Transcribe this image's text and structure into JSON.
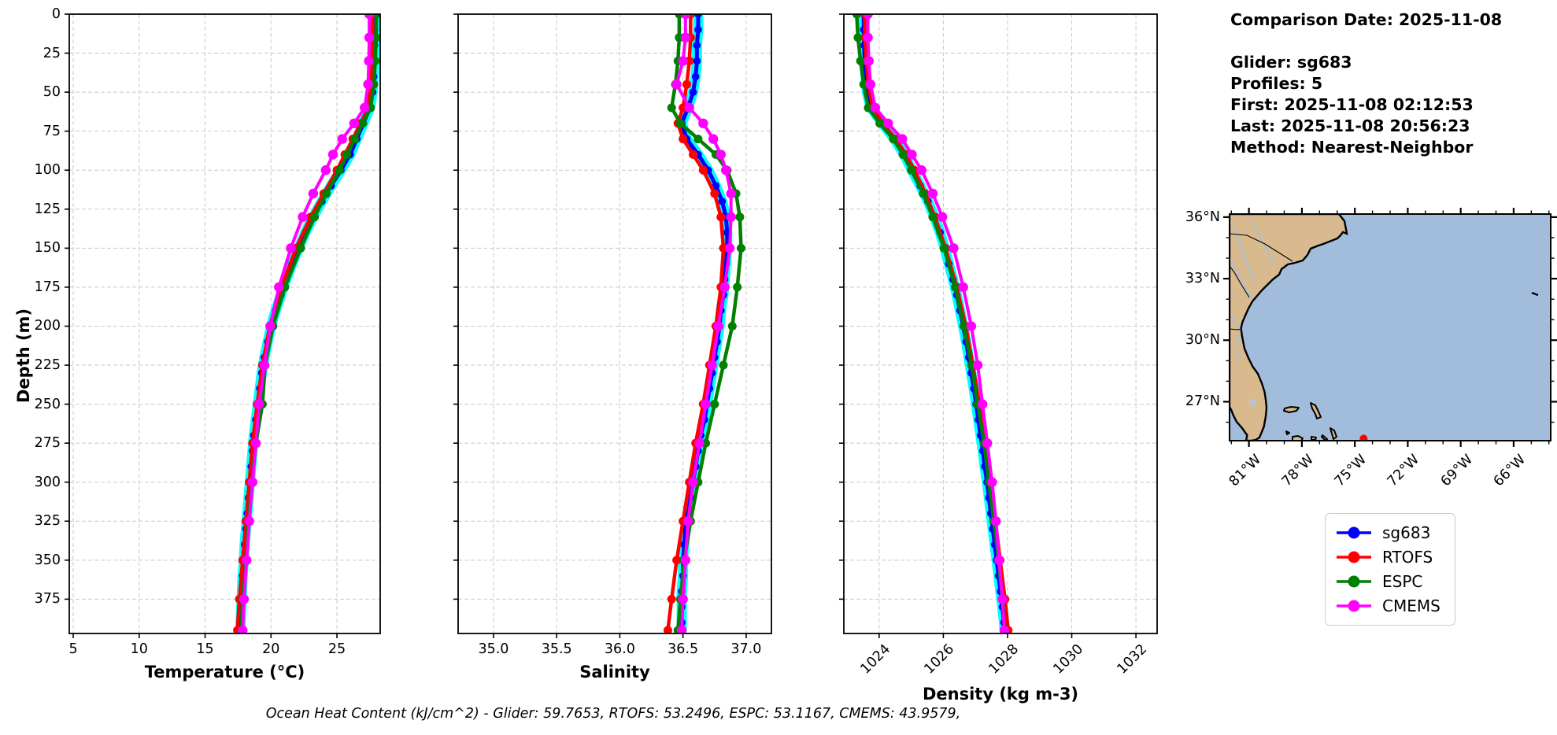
{
  "info_panel": {
    "comparison_date": "Comparison Date: 2025-11-08",
    "glider": "Glider: sg683",
    "profiles": "Profiles: 5",
    "first": "First: 2025-11-08 02:12:53",
    "last": "Last: 2025-11-08 20:56:23",
    "method": "Method: Nearest-Neighbor"
  },
  "ohc_text": "Ocean Heat Content (kJ/cm^2) - Glider: 59.7653,  RTOFS: 53.2496,  ESPC: 53.1167,  CMEMS: 43.9579,",
  "depth_axis": {
    "label": "Depth (m)",
    "ylim": [
      0,
      397
    ],
    "yticks": [
      0,
      25,
      50,
      75,
      100,
      125,
      150,
      175,
      200,
      225,
      250,
      275,
      300,
      325,
      350,
      375
    ],
    "ytick_labels": [
      "0",
      "25",
      "50",
      "75",
      "100",
      "125",
      "150",
      "175",
      "200",
      "225",
      "250",
      "275",
      "300",
      "325",
      "350",
      "375"
    ]
  },
  "legend": {
    "items": [
      {
        "label": "sg683",
        "color": "#0000ff"
      },
      {
        "label": "RTOFS",
        "color": "#ff0000"
      },
      {
        "label": "ESPC",
        "color": "#008000"
      },
      {
        "label": "CMEMS",
        "color": "#ff00ff"
      }
    ]
  },
  "colors": {
    "glider": "#0000ff",
    "glider_envelope": "#00ffff",
    "rtofs": "#ff0000",
    "espc": "#008000",
    "cmems": "#ff00ff",
    "grid": "#c9c9c9",
    "spine": "#000000"
  },
  "chart_data": [
    {
      "type": "line",
      "xlabel": "Temperature (°C)",
      "xlim": [
        4.7,
        28.28
      ],
      "xticks": [
        5,
        10,
        15,
        20,
        25
      ],
      "xtick_labels": [
        "5",
        "10",
        "15",
        "20",
        "25"
      ],
      "rotated_xticks": false,
      "grid": true,
      "series": [
        {
          "name": "sg683",
          "color": "#0000ff",
          "envelope": true,
          "marker_r": 4.8,
          "line_w": 5,
          "depths": [
            0,
            10,
            20,
            30,
            40,
            50,
            60,
            70,
            80,
            90,
            100,
            110,
            120,
            130,
            140,
            150,
            160,
            170,
            180,
            190,
            200,
            210,
            220,
            230,
            240,
            250,
            260,
            270,
            280,
            290,
            300,
            310,
            320,
            330,
            340,
            350,
            360,
            370,
            380,
            390,
            395
          ],
          "values": [
            27.85,
            27.85,
            27.84,
            27.82,
            27.78,
            27.7,
            27.5,
            27.0,
            26.5,
            26.0,
            25.3,
            24.55,
            23.85,
            23.2,
            22.6,
            22.1,
            21.6,
            21.15,
            20.75,
            20.35,
            20.0,
            19.75,
            19.5,
            19.3,
            19.15,
            19.0,
            18.85,
            18.7,
            18.6,
            18.5,
            18.4,
            18.3,
            18.2,
            18.1,
            18.0,
            17.95,
            17.85,
            17.8,
            17.75,
            17.7,
            17.68
          ]
        },
        {
          "name": "RTOFS",
          "color": "#ff0000",
          "envelope": false,
          "marker_r": 5.5,
          "line_w": 4.5,
          "depths": [
            0,
            15,
            30,
            45,
            60,
            70,
            80,
            90,
            100,
            115,
            130,
            150,
            175,
            200,
            225,
            250,
            275,
            300,
            325,
            350,
            375,
            395
          ],
          "values": [
            27.7,
            27.7,
            27.66,
            27.58,
            27.35,
            26.8,
            26.2,
            25.6,
            25.0,
            24.0,
            23.0,
            21.9,
            20.8,
            19.9,
            19.35,
            18.95,
            18.6,
            18.35,
            18.1,
            17.85,
            17.6,
            17.45
          ]
        },
        {
          "name": "ESPC",
          "color": "#008000",
          "envelope": false,
          "marker_r": 5.5,
          "line_w": 4.5,
          "depths": [
            0,
            15,
            30,
            45,
            60,
            70,
            80,
            90,
            100,
            115,
            130,
            150,
            175,
            200,
            225,
            250,
            275,
            300,
            325,
            350,
            375,
            395
          ],
          "values": [
            28.0,
            27.97,
            27.9,
            27.8,
            27.55,
            26.95,
            26.35,
            25.75,
            25.2,
            24.2,
            23.3,
            22.25,
            21.05,
            20.15,
            19.55,
            19.35,
            18.85,
            18.55,
            18.3,
            18.1,
            17.85,
            17.75
          ]
        },
        {
          "name": "CMEMS",
          "color": "#ff00ff",
          "envelope": false,
          "marker_r": 6.2,
          "line_w": 4,
          "depths": [
            0,
            15,
            30,
            45,
            60,
            70,
            80,
            90,
            100,
            115,
            130,
            150,
            175,
            200,
            225,
            250,
            275,
            300,
            325,
            350,
            375,
            395
          ],
          "values": [
            27.45,
            27.45,
            27.42,
            27.36,
            27.1,
            26.3,
            25.4,
            24.7,
            24.15,
            23.2,
            22.4,
            21.5,
            20.6,
            19.95,
            19.5,
            19.1,
            18.85,
            18.6,
            18.35,
            18.15,
            17.95,
            17.85
          ]
        }
      ]
    },
    {
      "type": "line",
      "xlabel": "Salinity",
      "xlim": [
        34.72,
        37.2
      ],
      "xticks": [
        35.0,
        35.5,
        36.0,
        36.5,
        37.0
      ],
      "xtick_labels": [
        "35.0",
        "35.5",
        "36.0",
        "36.5",
        "37.0"
      ],
      "rotated_xticks": false,
      "grid": true,
      "series": [
        {
          "name": "sg683",
          "color": "#0000ff",
          "envelope": true,
          "marker_r": 4.8,
          "line_w": 5,
          "depths": [
            0,
            10,
            20,
            30,
            40,
            50,
            60,
            70,
            80,
            90,
            100,
            110,
            120,
            130,
            140,
            150,
            160,
            170,
            180,
            190,
            200,
            210,
            220,
            230,
            240,
            250,
            260,
            270,
            280,
            290,
            300,
            310,
            320,
            330,
            340,
            350,
            360,
            370,
            380,
            390,
            395
          ],
          "values": [
            36.62,
            36.62,
            36.61,
            36.61,
            36.6,
            36.58,
            36.54,
            36.49,
            36.53,
            36.62,
            36.7,
            36.76,
            36.81,
            36.84,
            36.85,
            36.85,
            36.84,
            36.83,
            36.82,
            36.8,
            36.79,
            36.77,
            36.75,
            36.73,
            36.71,
            36.69,
            36.67,
            36.64,
            36.62,
            36.6,
            36.58,
            36.56,
            36.54,
            36.52,
            36.51,
            36.5,
            36.5,
            36.49,
            36.49,
            36.49,
            36.49
          ]
        },
        {
          "name": "RTOFS",
          "color": "#ff0000",
          "envelope": false,
          "marker_r": 5.5,
          "line_w": 4.5,
          "depths": [
            0,
            15,
            30,
            45,
            60,
            70,
            80,
            90,
            100,
            115,
            130,
            150,
            175,
            200,
            225,
            250,
            275,
            300,
            325,
            350,
            375,
            395
          ],
          "values": [
            36.56,
            36.56,
            36.55,
            36.53,
            36.5,
            36.46,
            36.5,
            36.58,
            36.66,
            36.75,
            36.8,
            36.82,
            36.8,
            36.76,
            36.71,
            36.66,
            36.6,
            36.55,
            36.5,
            36.45,
            36.41,
            36.38
          ]
        },
        {
          "name": "ESPC",
          "color": "#008000",
          "envelope": false,
          "marker_r": 5.5,
          "line_w": 4.5,
          "depths": [
            0,
            15,
            30,
            45,
            60,
            70,
            80,
            90,
            100,
            115,
            130,
            150,
            175,
            200,
            225,
            250,
            275,
            300,
            325,
            350,
            375,
            395
          ],
          "values": [
            36.47,
            36.47,
            36.46,
            36.44,
            36.41,
            36.48,
            36.62,
            36.76,
            36.85,
            36.92,
            36.95,
            36.96,
            36.93,
            36.89,
            36.82,
            36.75,
            36.68,
            36.62,
            36.56,
            36.51,
            36.48,
            36.46
          ]
        },
        {
          "name": "CMEMS",
          "color": "#ff00ff",
          "envelope": false,
          "marker_r": 6.2,
          "line_w": 4,
          "depths": [
            0,
            15,
            30,
            45,
            60,
            70,
            80,
            90,
            100,
            115,
            130,
            150,
            175,
            200,
            225,
            250,
            275,
            300,
            325,
            350,
            375,
            395
          ],
          "values": [
            36.52,
            36.52,
            36.5,
            36.45,
            36.55,
            36.66,
            36.74,
            36.8,
            36.84,
            36.88,
            36.88,
            36.87,
            36.83,
            36.78,
            36.73,
            36.68,
            36.63,
            36.58,
            36.54,
            36.52,
            36.5,
            36.49
          ]
        }
      ]
    },
    {
      "type": "line",
      "xlabel": "Density (kg m-3)",
      "xlim": [
        1022.9,
        1032.66
      ],
      "xticks": [
        1024,
        1026,
        1028,
        1030,
        1032
      ],
      "xtick_labels": [
        "1024",
        "1026",
        "1028",
        "1030",
        "1032"
      ],
      "rotated_xticks": true,
      "grid": true,
      "series": [
        {
          "name": "sg683",
          "color": "#0000ff",
          "envelope": true,
          "marker_r": 4.8,
          "line_w": 5,
          "depths": [
            0,
            10,
            20,
            30,
            40,
            50,
            60,
            70,
            80,
            90,
            100,
            110,
            120,
            130,
            140,
            150,
            160,
            170,
            180,
            190,
            200,
            210,
            220,
            230,
            240,
            250,
            260,
            270,
            280,
            290,
            300,
            310,
            320,
            330,
            340,
            350,
            360,
            370,
            380,
            390,
            395
          ],
          "values": [
            1023.52,
            1023.52,
            1023.53,
            1023.55,
            1023.58,
            1023.62,
            1023.74,
            1024.1,
            1024.48,
            1024.78,
            1025.02,
            1025.28,
            1025.52,
            1025.72,
            1025.9,
            1026.04,
            1026.17,
            1026.3,
            1026.42,
            1026.52,
            1026.62,
            1026.71,
            1026.79,
            1026.87,
            1026.95,
            1027.02,
            1027.09,
            1027.16,
            1027.23,
            1027.29,
            1027.36,
            1027.42,
            1027.48,
            1027.54,
            1027.6,
            1027.66,
            1027.72,
            1027.78,
            1027.84,
            1027.89,
            1027.91
          ]
        },
        {
          "name": "RTOFS",
          "color": "#ff0000",
          "envelope": false,
          "marker_r": 5.5,
          "line_w": 4.5,
          "depths": [
            0,
            15,
            30,
            45,
            60,
            70,
            80,
            90,
            100,
            115,
            130,
            150,
            175,
            200,
            225,
            250,
            275,
            300,
            325,
            350,
            375,
            395
          ],
          "values": [
            1023.55,
            1023.56,
            1023.6,
            1023.66,
            1023.8,
            1024.12,
            1024.52,
            1024.84,
            1025.1,
            1025.44,
            1025.74,
            1026.07,
            1026.42,
            1026.7,
            1026.92,
            1027.12,
            1027.3,
            1027.47,
            1027.62,
            1027.77,
            1027.92,
            1028.02
          ]
        },
        {
          "name": "ESPC",
          "color": "#008000",
          "envelope": false,
          "marker_r": 5.5,
          "line_w": 4.5,
          "depths": [
            0,
            15,
            30,
            45,
            60,
            70,
            80,
            90,
            100,
            115,
            130,
            150,
            175,
            200,
            225,
            250,
            275,
            300,
            325,
            350,
            375,
            395
          ],
          "values": [
            1023.3,
            1023.34,
            1023.42,
            1023.52,
            1023.66,
            1024.02,
            1024.44,
            1024.74,
            1025.0,
            1025.37,
            1025.67,
            1026.02,
            1026.37,
            1026.64,
            1026.88,
            1027.07,
            1027.27,
            1027.42,
            1027.57,
            1027.72,
            1027.84,
            1027.92
          ]
        },
        {
          "name": "CMEMS",
          "color": "#ff00ff",
          "envelope": false,
          "marker_r": 6.2,
          "line_w": 4,
          "depths": [
            0,
            15,
            30,
            45,
            60,
            70,
            80,
            90,
            100,
            115,
            130,
            150,
            175,
            200,
            225,
            250,
            275,
            300,
            325,
            350,
            375,
            395
          ],
          "values": [
            1023.65,
            1023.65,
            1023.68,
            1023.73,
            1023.88,
            1024.28,
            1024.72,
            1025.02,
            1025.32,
            1025.67,
            1025.97,
            1026.32,
            1026.62,
            1026.87,
            1027.07,
            1027.22,
            1027.37,
            1027.52,
            1027.64,
            1027.74,
            1027.84,
            1027.9
          ]
        }
      ]
    }
  ],
  "map": {
    "extent": {
      "west": 82.1,
      "east": 63.9,
      "north": 36.15,
      "south": 25.1
    },
    "lat_ticks": [
      {
        "value": 36,
        "label": "36°N"
      },
      {
        "value": 33,
        "label": "33°N"
      },
      {
        "value": 30,
        "label": "30°N"
      },
      {
        "value": 27,
        "label": "27°N"
      }
    ],
    "lon_ticks": [
      {
        "value": 81,
        "label": "81°W"
      },
      {
        "value": 78,
        "label": "78°W"
      },
      {
        "value": 75,
        "label": "75°W"
      },
      {
        "value": 72,
        "label": "72°W"
      },
      {
        "value": 69,
        "label": "69°W"
      },
      {
        "value": 66,
        "label": "66°W"
      }
    ],
    "glider_marker": {
      "lon": 74.5,
      "lat": 25.2,
      "color": "#ff0000"
    },
    "land_color": "#d9ba8e",
    "ocean_color": "#a2bddc",
    "river_color": "#9dc2e8",
    "lake_color": "#b9c3cc"
  }
}
